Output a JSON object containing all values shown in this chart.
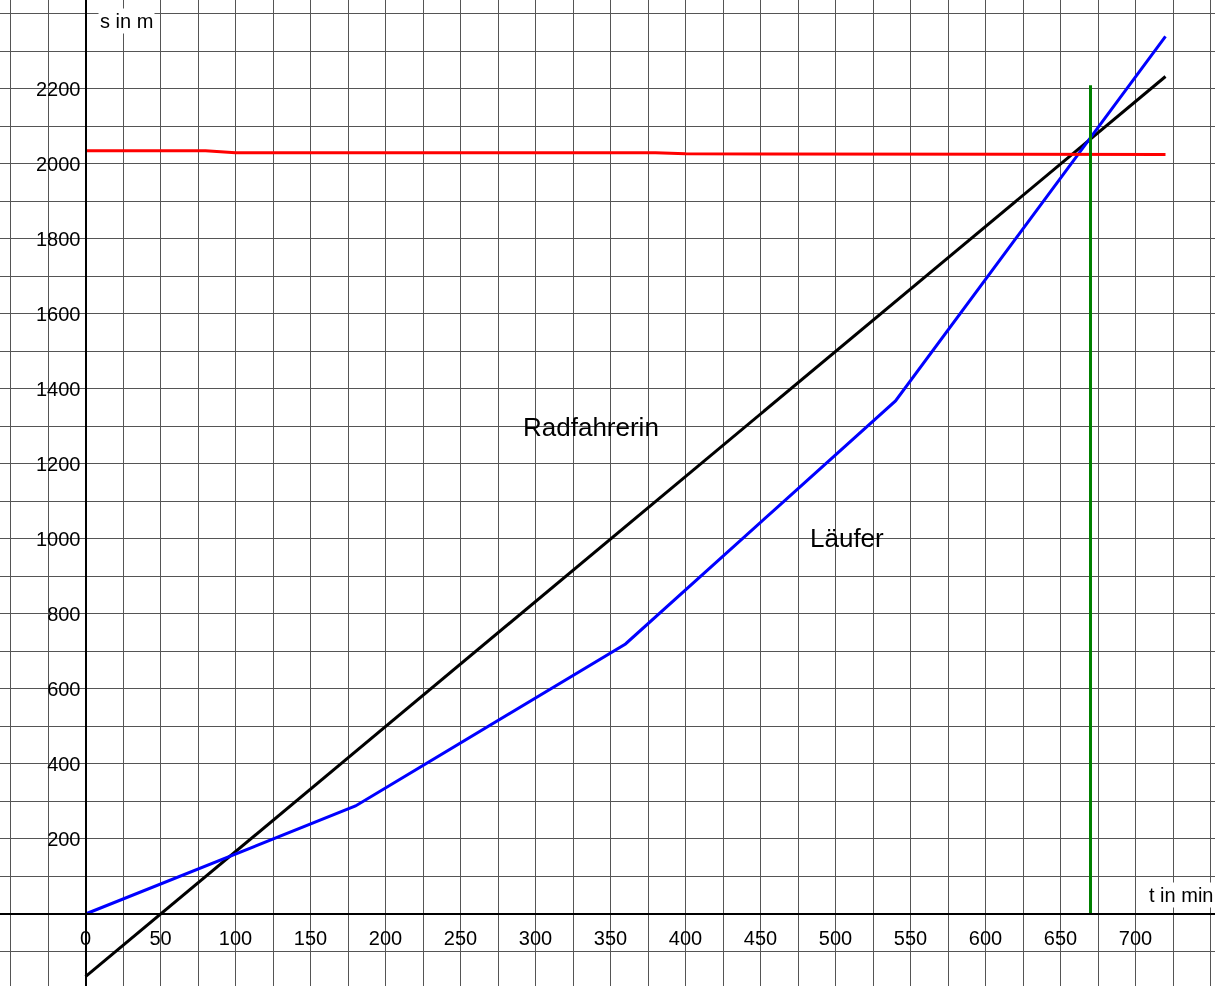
{
  "chart_data": {
    "type": "line",
    "xlabel": "t in min",
    "ylabel": "s in m",
    "xlim": [
      -57,
      753
    ],
    "ylim": [
      -192,
      2437
    ],
    "xticks": [
      {
        "value": -50,
        "label": null
      },
      {
        "value": -25,
        "label": null
      },
      {
        "value": 0,
        "label": "0"
      },
      {
        "value": 25,
        "label": null
      },
      50,
      {
        "value": 75,
        "label": null
      },
      100,
      {
        "value": 125,
        "label": null
      },
      150,
      {
        "value": 175,
        "label": null
      },
      200,
      {
        "value": 225,
        "label": null
      },
      250,
      {
        "value": 275,
        "label": null
      },
      300,
      {
        "value": 325,
        "label": null
      },
      350,
      {
        "value": 375,
        "label": null
      },
      400,
      {
        "value": 425,
        "label": null
      },
      450,
      {
        "value": 475,
        "label": null
      },
      500,
      {
        "value": 525,
        "label": null
      },
      550,
      {
        "value": 575,
        "label": null
      },
      600,
      {
        "value": 625,
        "label": null
      },
      650,
      {
        "value": 675,
        "label": null
      },
      700,
      {
        "value": 725,
        "label": null
      },
      {
        "value": 750,
        "label": null
      }
    ],
    "yticks": [
      {
        "value": -100,
        "label": null
      },
      {
        "value": 0,
        "label": null
      },
      {
        "value": 100,
        "label": null
      },
      200,
      {
        "value": 300,
        "label": null
      },
      400,
      {
        "value": 500,
        "label": null
      },
      600,
      {
        "value": 700,
        "label": null
      },
      800,
      {
        "value": 900,
        "label": null
      },
      1000,
      {
        "value": 1100,
        "label": null
      },
      1200,
      {
        "value": 1300,
        "label": null
      },
      1400,
      {
        "value": 1500,
        "label": null
      },
      1600,
      {
        "value": 1700,
        "label": null
      },
      1800,
      {
        "value": 1900,
        "label": null
      },
      2000,
      {
        "value": 2100,
        "label": null
      },
      2200,
      {
        "value": 2300,
        "label": null
      },
      {
        "value": 2400,
        "label": null
      }
    ],
    "grid": true,
    "legend": false,
    "marker": "none",
    "line_style": "solid",
    "series": [
      {
        "name": "Radfahrerin",
        "color": "#000000",
        "x": [
          0,
          720
        ],
        "values": [
          -167,
          2233
        ]
      },
      {
        "name": "Läufer",
        "color": "#0000ff",
        "x": [
          0,
          180,
          360,
          540,
          720
        ],
        "values": [
          0,
          288,
          720,
          1368,
          2340
        ]
      },
      {
        "color": "#ff0000",
        "x": [
          0,
          80,
          100,
          380,
          400,
          720
        ],
        "values": [
          2035,
          2035,
          2030,
          2030,
          2027,
          2025
        ]
      },
      {
        "color": "#008000",
        "x": [
          670,
          670
        ],
        "values": [
          0,
          2210
        ]
      }
    ]
  }
}
